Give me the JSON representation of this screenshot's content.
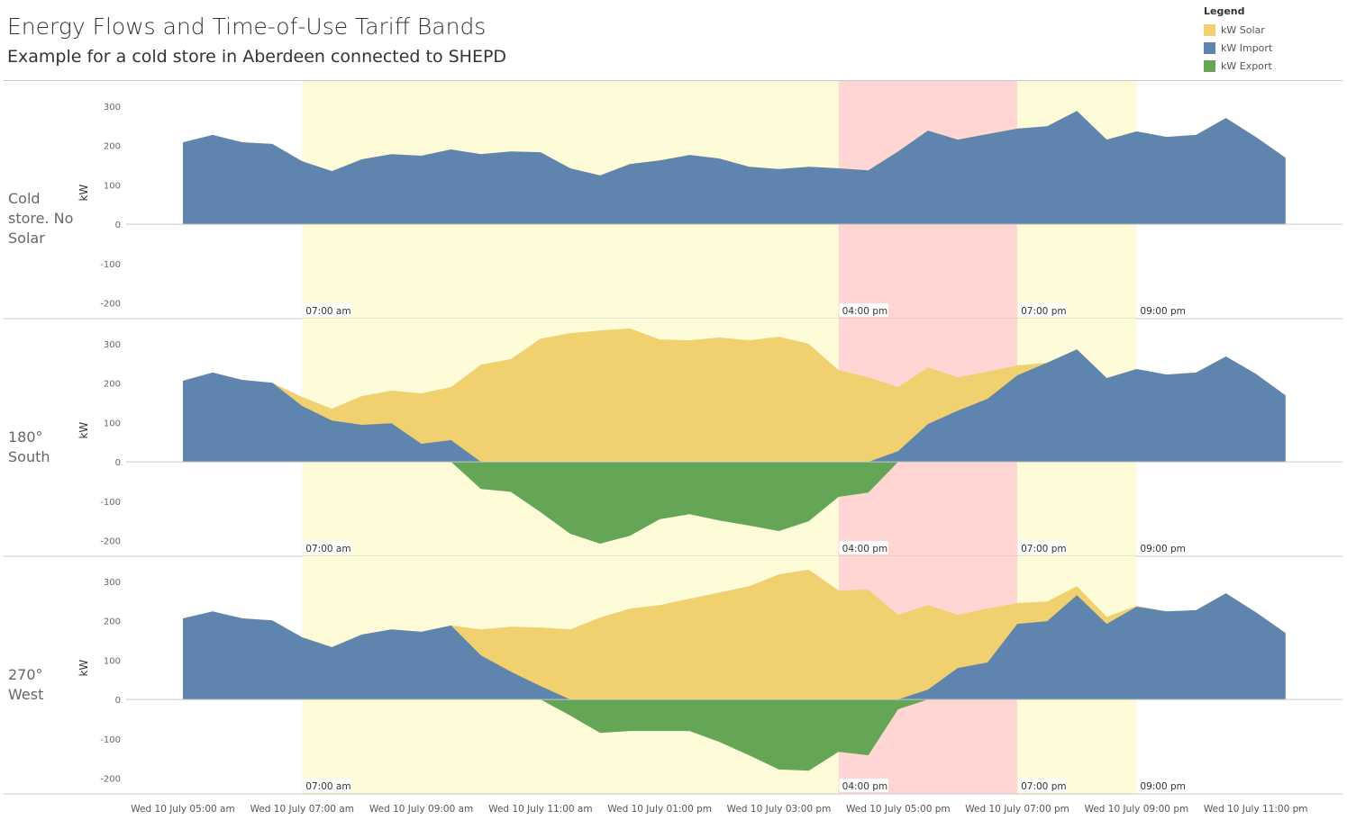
{
  "title": "Energy Flows and Time-of-Use Tariff Bands",
  "subtitle": "Example for a cold store in Aberdeen connected to SHEPD",
  "legend": {
    "title": "Legend",
    "items": [
      {
        "label": "kW Solar",
        "color": "#f1d06f"
      },
      {
        "label": "kW Import",
        "color": "#5f84ad"
      },
      {
        "label": "kW Export",
        "color": "#64a556"
      }
    ]
  },
  "chart_data": {
    "type": "area",
    "ylabel": "kW",
    "ylim": [
      -240,
      364
    ],
    "yticks": [
      -200,
      -100,
      0,
      100,
      200,
      300
    ],
    "x_times": [
      "05:00",
      "05:30",
      "06:00",
      "06:30",
      "07:00",
      "07:30",
      "08:00",
      "08:30",
      "09:00",
      "09:30",
      "10:00",
      "10:30",
      "11:00",
      "11:30",
      "12:00",
      "12:30",
      "13:00",
      "13:30",
      "14:00",
      "14:30",
      "15:00",
      "15:30",
      "16:00",
      "16:30",
      "17:00",
      "17:30",
      "18:00",
      "18:30",
      "19:00",
      "19:30",
      "20:00",
      "20:30",
      "21:00",
      "21:30",
      "22:00",
      "22:30",
      "23:00",
      "23:30"
    ],
    "xtick_labels": [
      "Wed 10 July 05:00 am",
      "Wed 10 July 07:00 am",
      "Wed 10 July 09:00 am",
      "Wed 10 July 11:00 am",
      "Wed 10 July 01:00 pm",
      "Wed 10 July 03:00 pm",
      "Wed 10 July 05:00 pm",
      "Wed 10 July 07:00 pm",
      "Wed 10 July 09:00 pm",
      "Wed 10 July 11:00 pm"
    ],
    "xtick_hours": [
      5,
      7,
      9,
      11,
      13,
      15,
      17,
      19,
      21,
      23
    ],
    "tariff_bands": [
      {
        "start": "07:00",
        "end": "16:00",
        "start_label": "07:00 am",
        "color": "#fefcd8"
      },
      {
        "start": "16:00",
        "end": "19:00",
        "start_label": "04:00 pm",
        "color": "#ffd6d3"
      },
      {
        "start": "19:00",
        "end": "21:00",
        "start_label": "07:00 pm",
        "color": "#fefcd8"
      },
      {
        "start": "21:00",
        "end": null,
        "start_label": "09:00 pm",
        "color": null
      }
    ],
    "panels": [
      {
        "label": "Cold store. No Solar",
        "import": [
          208,
          227,
          208,
          204,
          160,
          135,
          165,
          178,
          174,
          190,
          178,
          185,
          183,
          142,
          124,
          153,
          162,
          176,
          167,
          146,
          140,
          146,
          142,
          137,
          185,
          238,
          215,
          229,
          243,
          249,
          288,
          215,
          236,
          222,
          227,
          270,
          222,
          169
        ],
        "solar": [
          0,
          0,
          0,
          0,
          0,
          0,
          0,
          0,
          0,
          0,
          0,
          0,
          0,
          0,
          0,
          0,
          0,
          0,
          0,
          0,
          0,
          0,
          0,
          0,
          0,
          0,
          0,
          0,
          0,
          0,
          0,
          0,
          0,
          0,
          0,
          0,
          0,
          0
        ],
        "export": [
          0,
          0,
          0,
          0,
          0,
          0,
          0,
          0,
          0,
          0,
          0,
          0,
          0,
          0,
          0,
          0,
          0,
          0,
          0,
          0,
          0,
          0,
          0,
          0,
          0,
          0,
          0,
          0,
          0,
          0,
          0,
          0,
          0,
          0,
          0,
          0,
          0,
          0
        ]
      },
      {
        "label": "180° South",
        "import": [
          206,
          227,
          208,
          201,
          142,
          105,
          94,
          98,
          46,
          55,
          0,
          0,
          0,
          0,
          0,
          0,
          0,
          0,
          0,
          0,
          0,
          0,
          0,
          0,
          27,
          96,
          130,
          160,
          220,
          252,
          286,
          213,
          236,
          222,
          227,
          268,
          224,
          169
        ],
        "solar": [
          0,
          0,
          0,
          0,
          23,
          30,
          73,
          83,
          128,
          135,
          247,
          261,
          313,
          327,
          334,
          339,
          311,
          309,
          316,
          309,
          318,
          300,
          233,
          215,
          163,
          144,
          85,
          69,
          25,
          0,
          0,
          0,
          0,
          0,
          0,
          0,
          0,
          0
        ],
        "export": [
          0,
          0,
          0,
          0,
          0,
          0,
          0,
          0,
          0,
          0,
          -69,
          -76,
          -128,
          -183,
          -208,
          -188,
          -146,
          -133,
          -149,
          -162,
          -176,
          -151,
          -89,
          -78,
          0,
          0,
          0,
          0,
          0,
          0,
          0,
          0,
          0,
          0,
          0,
          0,
          0,
          0
        ]
      },
      {
        "label": "270° West",
        "import": [
          206,
          224,
          206,
          201,
          158,
          133,
          165,
          178,
          172,
          188,
          112,
          71,
          34,
          0,
          0,
          0,
          0,
          0,
          0,
          0,
          0,
          0,
          0,
          0,
          0,
          25,
          80,
          94,
          192,
          199,
          265,
          192,
          236,
          224,
          227,
          270,
          222,
          169
        ],
        "solar": [
          0,
          0,
          0,
          0,
          0,
          0,
          0,
          0,
          0,
          0,
          66,
          114,
          149,
          178,
          208,
          231,
          240,
          256,
          272,
          288,
          318,
          330,
          277,
          279,
          215,
          215,
          135,
          137,
          53,
          50,
          23,
          18,
          2,
          0,
          0,
          0,
          0,
          0
        ],
        "export": [
          0,
          0,
          0,
          0,
          0,
          0,
          0,
          0,
          0,
          0,
          0,
          0,
          0,
          -41,
          -85,
          -80,
          -80,
          -80,
          -108,
          -142,
          -178,
          -181,
          -133,
          -142,
          -25,
          0,
          0,
          0,
          0,
          0,
          0,
          0,
          0,
          0,
          0,
          0,
          0,
          0
        ]
      }
    ]
  }
}
